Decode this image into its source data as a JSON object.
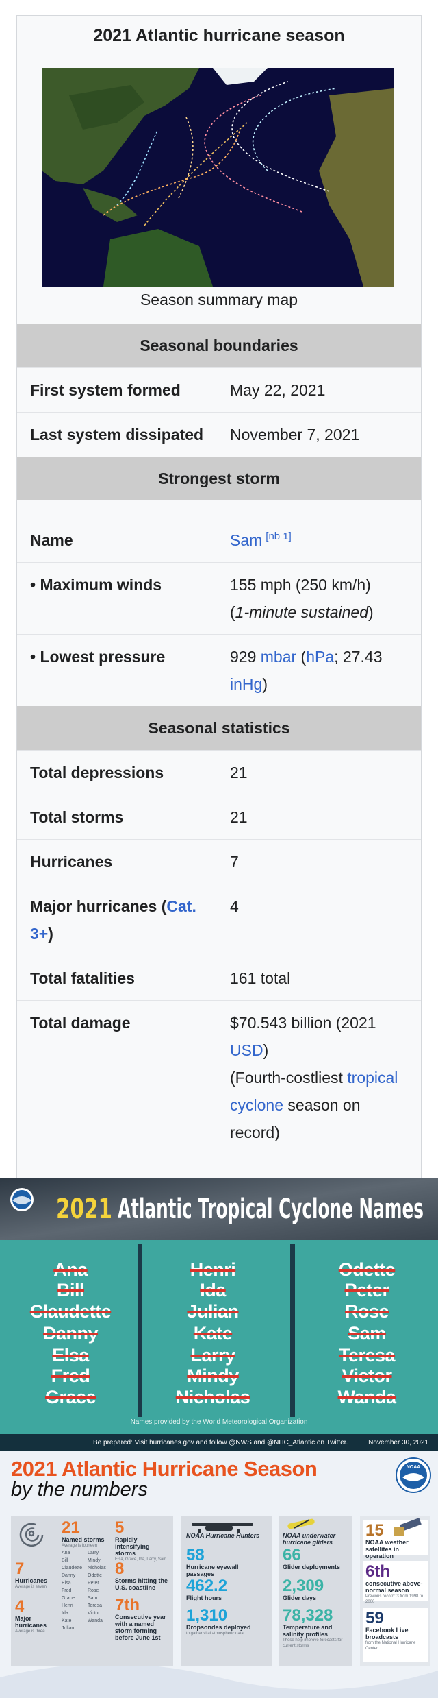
{
  "infobox": {
    "title": "2021 Atlantic hurricane season",
    "caption": "Season summary map",
    "sections": [
      {
        "header": "Seasonal boundaries",
        "rows": [
          {
            "label": "First system formed",
            "value": [
              {
                "text": "May 22, 2021"
              }
            ]
          },
          {
            "label": "Last system dissipated",
            "value": [
              {
                "text": "November 7, 2021"
              }
            ]
          }
        ]
      },
      {
        "header": "Strongest storm",
        "rows": [
          {
            "label": "Name",
            "value": [
              {
                "text": "Sam",
                "link": true
              },
              {
                "text": "[nb 1]",
                "link": true,
                "sup": true
              }
            ]
          },
          {
            "label": "• Maximum winds",
            "value": [
              {
                "text": "155 mph (250 km/h)"
              },
              {
                "text": "(",
                "block": true
              },
              {
                "text": "1-minute sustained",
                "italic": true
              },
              {
                "text": ")"
              }
            ]
          },
          {
            "label": "• Lowest pressure",
            "value": [
              {
                "text": "929 "
              },
              {
                "text": "mbar",
                "link": true
              },
              {
                "text": " ("
              },
              {
                "text": "hPa",
                "link": true
              },
              {
                "text": "; 27.43 "
              },
              {
                "text": "inHg",
                "link": true
              },
              {
                "text": ")"
              }
            ]
          }
        ]
      },
      {
        "header": "Seasonal statistics",
        "rows": [
          {
            "label": "Total depressions",
            "value": [
              {
                "text": "21"
              }
            ]
          },
          {
            "label": "Total storms",
            "value": [
              {
                "text": "21"
              }
            ]
          },
          {
            "label": "Hurricanes",
            "value": [
              {
                "text": "7"
              }
            ]
          },
          {
            "label": [
              {
                "text": "Major hurricanes ("
              },
              {
                "text": "Cat. 3+",
                "link": true
              },
              {
                "text": ")"
              }
            ],
            "value": [
              {
                "text": "4"
              }
            ]
          },
          {
            "label": "Total fatalities",
            "value": [
              {
                "text": "161 total"
              }
            ]
          },
          {
            "label": "Total damage",
            "value": [
              {
                "text": "$70.543 billion (2021 "
              },
              {
                "text": "USD",
                "link": true
              },
              {
                "text": ")"
              },
              {
                "text": "(Fourth-costliest ",
                "block": true
              },
              {
                "text": "tropical cyclone",
                "link": true
              },
              {
                "text": " season on record)"
              }
            ]
          }
        ]
      }
    ]
  },
  "names_graphic": {
    "logo": "NOAA",
    "title_year": "2021",
    "title_rest": "Atlantic Tropical Cyclone Names",
    "columns": [
      [
        "Ana",
        "Bill",
        "Claudette",
        "Danny",
        "Elsa",
        "Fred",
        "Grace"
      ],
      [
        "Henri",
        "Ida",
        "Julian",
        "Kate",
        "Larry",
        "Mindy",
        "Nicholas"
      ],
      [
        "Odette",
        "Peter",
        "Rose",
        "Sam",
        "Teresa",
        "Victor",
        "Wanda"
      ]
    ],
    "credit": "Names provided by the World Meteorological Organization",
    "footer": "Be prepared: Visit hurricanes.gov and follow @NWS and @NHC_Atlantic on Twitter.",
    "date": "November 30, 2021"
  },
  "numbers_graphic": {
    "title": "2021 Atlantic Hurricane Season",
    "subtitle": "by the numbers",
    "logo": "NOAA",
    "named_storms_list": [
      [
        "Ana",
        "Bill",
        "Claudette",
        "Danny",
        "Elsa",
        "Fred",
        "Grace",
        "Henri",
        "Ida",
        "Kate",
        "Julian"
      ],
      [
        "Larry",
        "Mindy",
        "Nicholas",
        "Odette",
        "Peter",
        "Rose",
        "Sam",
        "Teresa",
        "Victor",
        "Wanda"
      ]
    ],
    "panels": [
      {
        "stats": [
          {
            "number": "21",
            "label": "Named storms",
            "note": "Average is fourteen",
            "color": "#e8742a"
          },
          {
            "number": "7",
            "label": "Hurricanes",
            "note": "Average is seven",
            "color": "#e8742a"
          },
          {
            "number": "4",
            "label": "Major hurricanes",
            "note": "Average is three",
            "color": "#e8742a"
          },
          {
            "number": "5",
            "label": "Rapidly intensifying storms",
            "note": "Elsa, Grace, Ida, Larry, Sam",
            "color": "#e8742a"
          },
          {
            "number": "8",
            "label": "Storms hitting the U.S. coastline",
            "color": "#e8742a"
          },
          {
            "number": "7th",
            "label": "Consecutive year with a named storm forming before June 1st",
            "color": "#e8742a"
          }
        ]
      },
      {
        "heading": "NOAA Hurricane Hunters",
        "stats": [
          {
            "number": "58",
            "label": "Hurricane eyewall passages",
            "color": "#1da3d8"
          },
          {
            "number": "462.2",
            "label": "Flight hours",
            "color": "#1da3d8"
          },
          {
            "number": "1,310",
            "label": "Dropsondes deployed",
            "note": "to gather vital atmospheric data",
            "color": "#1da3d8"
          }
        ]
      },
      {
        "heading": "NOAA underwater hurricane gliders",
        "stats": [
          {
            "number": "66",
            "label": "Glider deployments",
            "color": "#3bb3a6"
          },
          {
            "number": "2,309",
            "label": "Glider days",
            "color": "#3bb3a6"
          },
          {
            "number": "78,328",
            "label": "Temperature and salinity profiles",
            "note": "These help improve forecasts for current storms",
            "color": "#3bb3a6"
          }
        ]
      },
      {
        "stats": [
          {
            "number": "15",
            "label": "NOAA weather satellites in operation",
            "color": "#b8742a"
          },
          {
            "number": "6th",
            "label": "consecutive above-normal season",
            "note": "Previous record: 3 from 1998 to 2000",
            "color": "#5b2a86"
          },
          {
            "number": "59",
            "label": "Facebook Live broadcasts",
            "note": "from the National Hurricane Center",
            "color": "#1d3b6a"
          }
        ]
      }
    ]
  }
}
